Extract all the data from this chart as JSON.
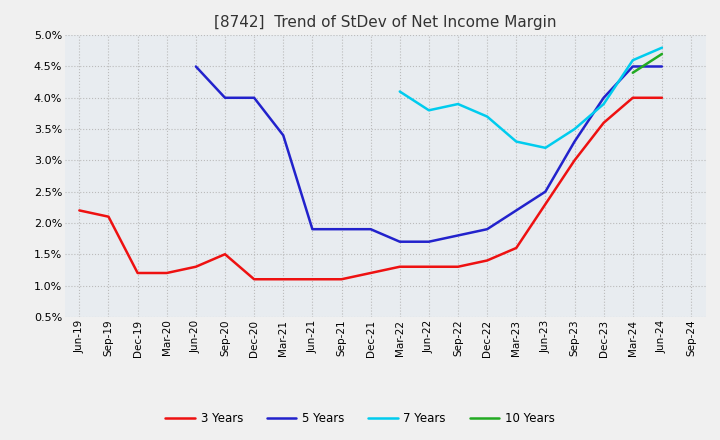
{
  "title": "[8742]  Trend of StDev of Net Income Margin",
  "x_labels": [
    "Jun-19",
    "Sep-19",
    "Dec-19",
    "Mar-20",
    "Jun-20",
    "Sep-20",
    "Dec-20",
    "Mar-21",
    "Jun-21",
    "Sep-21",
    "Dec-21",
    "Mar-22",
    "Jun-22",
    "Sep-22",
    "Dec-22",
    "Mar-23",
    "Jun-23",
    "Sep-23",
    "Dec-23",
    "Mar-24",
    "Jun-24",
    "Sep-24"
  ],
  "ylim": [
    0.005,
    0.05
  ],
  "yticks": [
    0.005,
    0.01,
    0.015,
    0.02,
    0.025,
    0.03,
    0.035,
    0.04,
    0.045,
    0.05
  ],
  "series": {
    "3 Years": {
      "color": "#EE1111",
      "data_y": [
        0.022,
        0.021,
        0.012,
        0.012,
        0.013,
        0.015,
        0.011,
        0.011,
        0.011,
        0.011,
        0.012,
        0.013,
        0.013,
        0.013,
        0.014,
        0.016,
        0.023,
        0.03,
        0.036,
        0.04,
        0.04,
        null
      ]
    },
    "5 Years": {
      "color": "#2222CC",
      "data_y": [
        null,
        null,
        null,
        null,
        0.045,
        0.04,
        0.04,
        0.034,
        0.019,
        0.019,
        0.019,
        0.017,
        0.017,
        0.018,
        0.019,
        0.022,
        0.025,
        0.033,
        0.04,
        0.045,
        0.045,
        null
      ]
    },
    "7 Years": {
      "color": "#00CCEE",
      "data_y": [
        null,
        null,
        null,
        null,
        null,
        null,
        null,
        null,
        null,
        null,
        null,
        0.041,
        0.038,
        0.039,
        0.037,
        0.033,
        0.032,
        0.035,
        0.039,
        0.046,
        0.048,
        null
      ]
    },
    "10 Years": {
      "color": "#22AA22",
      "data_y": [
        null,
        null,
        null,
        null,
        null,
        null,
        null,
        null,
        null,
        null,
        null,
        null,
        null,
        null,
        null,
        null,
        null,
        null,
        null,
        0.044,
        0.047,
        null
      ]
    }
  },
  "legend_order": [
    "3 Years",
    "5 Years",
    "7 Years",
    "10 Years"
  ],
  "fig_bg_color": "#F0F0F0",
  "plot_bg_color": "#E8ECF0",
  "grid_color": "#BBBBBB",
  "title_fontsize": 11,
  "tick_fontsize": 7.5,
  "linewidth": 1.8
}
